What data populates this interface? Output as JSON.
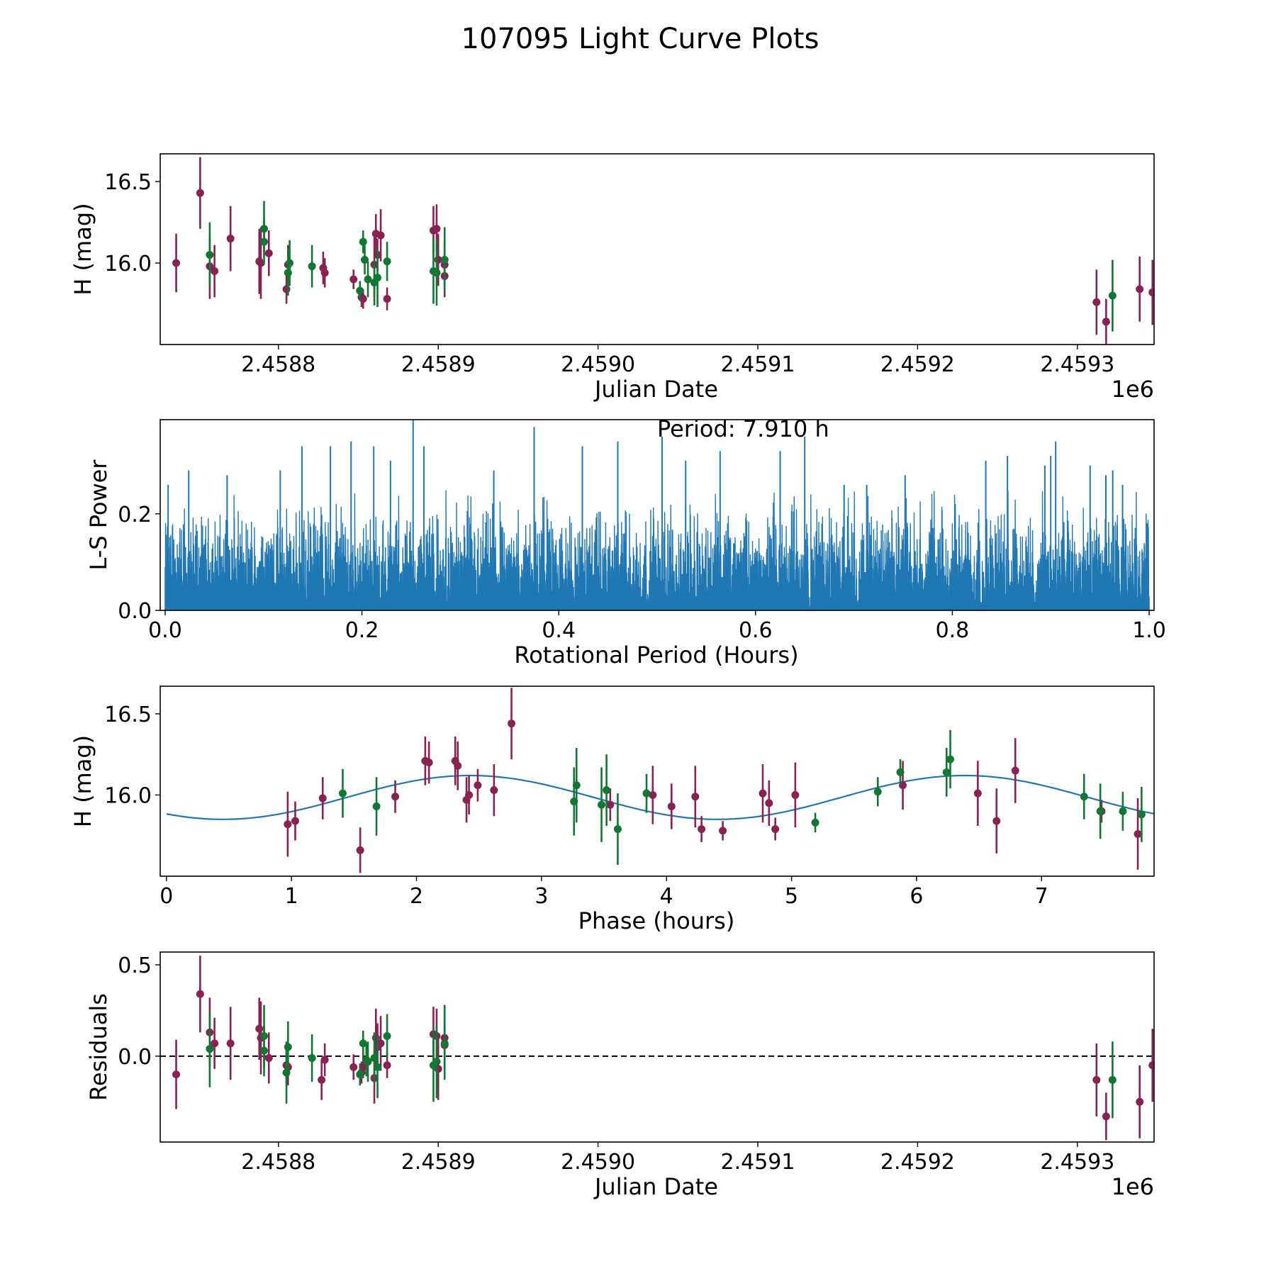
{
  "figure": {
    "title": "107095 Light Curve Plots"
  },
  "colors": {
    "series_a": "#882255",
    "series_b": "#117733",
    "periodogram": "#1f77b4",
    "fit": "#1f77b4",
    "zero_line": "#000000"
  },
  "chart_data": [
    {
      "id": "lightcurve",
      "type": "scatter",
      "title": "",
      "xlabel": "Julian Date",
      "ylabel": "H (mag)",
      "x_offset_label": "1e6",
      "x_units_note": "x values are JD - 2458800 (days)",
      "xlim": [
        -74,
        548
      ],
      "ylim": [
        15.5,
        16.67
      ],
      "xticks": [
        0,
        100,
        200,
        300,
        400,
        500
      ],
      "xtick_labels": [
        "2.4588",
        "2.4589",
        "2.4590",
        "2.4591",
        "2.4592",
        "2.4593"
      ],
      "yticks": [
        16.0,
        16.5
      ],
      "ytick_labels": [
        "16.0",
        "16.5"
      ],
      "series": [
        {
          "name": "filter A",
          "color_key": "series_a",
          "points": [
            [
              -64,
              16.0,
              0.18
            ],
            [
              -49,
              16.43,
              0.22
            ],
            [
              -43,
              15.98,
              0.2
            ],
            [
              -40,
              15.95,
              0.16
            ],
            [
              -30,
              16.15,
              0.2
            ],
            [
              -12,
              16.01,
              0.2
            ],
            [
              -11,
              16.0,
              0.22
            ],
            [
              -6,
              16.06,
              0.14
            ],
            [
              5,
              15.84,
              0.09
            ],
            [
              6,
              15.99,
              0.12
            ],
            [
              28,
              15.97,
              0.1
            ],
            [
              29,
              15.94,
              0.09
            ],
            [
              47,
              15.9,
              0.06
            ],
            [
              52,
              15.79,
              0.06
            ],
            [
              53,
              15.78,
              0.06
            ],
            [
              60,
              15.99,
              0.2
            ],
            [
              61,
              16.18,
              0.12
            ],
            [
              62,
              16.05,
              0.1
            ],
            [
              64,
              16.17,
              0.16
            ],
            [
              68,
              15.78,
              0.07
            ],
            [
              97,
              16.2,
              0.15
            ],
            [
              99,
              16.21,
              0.15
            ],
            [
              100,
              16.02,
              0.16
            ],
            [
              104,
              15.99,
              0.14
            ],
            [
              104,
              15.92,
              0.13
            ],
            [
              512,
              15.76,
              0.2
            ],
            [
              518,
              15.64,
              0.14
            ],
            [
              539,
              15.84,
              0.2
            ],
            [
              547,
              15.82,
              0.2
            ]
          ]
        },
        {
          "name": "filter B",
          "color_key": "series_b",
          "points": [
            [
              -43,
              16.05,
              0.2
            ],
            [
              -9,
              16.21,
              0.17
            ],
            [
              -9,
              16.13,
              0.14
            ],
            [
              6,
              15.94,
              0.14
            ],
            [
              7,
              16.0,
              0.14
            ],
            [
              21,
              15.98,
              0.13
            ],
            [
              51,
              15.83,
              0.06
            ],
            [
              53,
              16.13,
              0.07
            ],
            [
              54,
              16.02,
              0.09
            ],
            [
              56,
              15.9,
              0.11
            ],
            [
              60,
              15.88,
              0.14
            ],
            [
              62,
              15.91,
              0.18
            ],
            [
              68,
              16.01,
              0.12
            ],
            [
              97,
              15.95,
              0.2
            ],
            [
              99,
              15.94,
              0.2
            ],
            [
              104,
              16.02,
              0.2
            ],
            [
              522,
              15.8,
              0.22
            ]
          ]
        }
      ]
    },
    {
      "id": "periodogram",
      "type": "line",
      "title": "",
      "annotation": "Period: 7.910 h",
      "xlabel": "Rotational Period (Hours)",
      "ylabel": "L-S Power",
      "xlim": [
        -0.005,
        1.005
      ],
      "ylim": [
        0.0,
        0.395
      ],
      "xticks": [
        0.0,
        0.2,
        0.4,
        0.6,
        0.8,
        1.0
      ],
      "xtick_labels": [
        "0.0",
        "0.2",
        "0.4",
        "0.6",
        "0.8",
        "1.0"
      ],
      "yticks": [
        0.0,
        0.2
      ],
      "ytick_labels": [
        "0.0",
        "0.2"
      ],
      "noise_floor": 0.0,
      "typical_envelope": [
        0.1,
        0.2
      ],
      "notable_peaks": [
        [
          0.003,
          0.26
        ],
        [
          0.024,
          0.29
        ],
        [
          0.063,
          0.28
        ],
        [
          0.117,
          0.29
        ],
        [
          0.139,
          0.34
        ],
        [
          0.168,
          0.34
        ],
        [
          0.189,
          0.35
        ],
        [
          0.212,
          0.34
        ],
        [
          0.229,
          0.31
        ],
        [
          0.252,
          0.395
        ],
        [
          0.263,
          0.34
        ],
        [
          0.334,
          0.29
        ],
        [
          0.375,
          0.38
        ],
        [
          0.424,
          0.34
        ],
        [
          0.46,
          0.35
        ],
        [
          0.505,
          0.36
        ],
        [
          0.529,
          0.31
        ],
        [
          0.564,
          0.33
        ],
        [
          0.625,
          0.33
        ],
        [
          0.65,
          0.36
        ],
        [
          0.69,
          0.26
        ],
        [
          0.713,
          0.26
        ],
        [
          0.752,
          0.28
        ],
        [
          0.834,
          0.31
        ],
        [
          0.856,
          0.32
        ],
        [
          0.894,
          0.3
        ],
        [
          0.9,
          0.32
        ],
        [
          0.905,
          0.35
        ],
        [
          0.94,
          0.3
        ],
        [
          0.956,
          0.28
        ],
        [
          0.963,
          0.29
        ],
        [
          0.973,
          0.26
        ],
        [
          0.998,
          0.18
        ]
      ]
    },
    {
      "id": "phased",
      "type": "scatter",
      "title": "",
      "xlabel": "Phase (hours)",
      "ylabel": "H (mag)",
      "xlim": [
        -0.05,
        7.9
      ],
      "ylim": [
        15.5,
        16.67
      ],
      "xticks": [
        0,
        1,
        2,
        3,
        4,
        5,
        6,
        7
      ],
      "xtick_labels": [
        "0",
        "1",
        "2",
        "3",
        "4",
        "5",
        "6",
        "7"
      ],
      "yticks": [
        16.0,
        16.5
      ],
      "ytick_labels": [
        "16.0",
        "16.5"
      ],
      "fit": {
        "type": "sinusoid",
        "mean": 15.985,
        "amplitude": 0.135,
        "period_hours": 3.955,
        "max_phase_hours": 2.43,
        "x_range": [
          0.0,
          7.91
        ]
      },
      "series": [
        {
          "name": "filter A",
          "color_key": "series_a",
          "points": [
            [
              0.97,
              15.82,
              0.2
            ],
            [
              1.03,
              15.84,
              0.12
            ],
            [
              1.25,
              15.98,
              0.13
            ],
            [
              1.55,
              15.66,
              0.14
            ],
            [
              1.83,
              15.99,
              0.1
            ],
            [
              2.07,
              16.21,
              0.15
            ],
            [
              2.1,
              16.2,
              0.13
            ],
            [
              2.31,
              16.21,
              0.15
            ],
            [
              2.33,
              16.18,
              0.15
            ],
            [
              2.4,
              15.97,
              0.14
            ],
            [
              2.42,
              16.0,
              0.12
            ],
            [
              2.49,
              16.06,
              0.1
            ],
            [
              2.62,
              16.03,
              0.16
            ],
            [
              2.76,
              16.44,
              0.22
            ],
            [
              3.55,
              15.94,
              0.1
            ],
            [
              3.89,
              16.0,
              0.18
            ],
            [
              4.04,
              15.93,
              0.14
            ],
            [
              4.23,
              15.99,
              0.19
            ],
            [
              4.28,
              15.79,
              0.08
            ],
            [
              4.45,
              15.78,
              0.06
            ],
            [
              4.77,
              16.01,
              0.18
            ],
            [
              4.82,
              15.95,
              0.14
            ],
            [
              4.87,
              15.79,
              0.07
            ],
            [
              5.03,
              16.0,
              0.2
            ],
            [
              5.89,
              16.06,
              0.15
            ],
            [
              6.49,
              16.01,
              0.2
            ],
            [
              6.64,
              15.84,
              0.2
            ],
            [
              6.79,
              16.15,
              0.2
            ],
            [
              7.48,
              15.9,
              0.07
            ],
            [
              7.77,
              15.76,
              0.22
            ]
          ]
        },
        {
          "name": "filter B",
          "color_key": "series_b",
          "points": [
            [
              1.41,
              16.01,
              0.15
            ],
            [
              1.68,
              15.93,
              0.18
            ],
            [
              3.26,
              15.96,
              0.21
            ],
            [
              3.28,
              16.06,
              0.23
            ],
            [
              3.48,
              15.94,
              0.23
            ],
            [
              3.52,
              16.03,
              0.22
            ],
            [
              3.61,
              15.79,
              0.22
            ],
            [
              3.84,
              16.01,
              0.12
            ],
            [
              5.19,
              15.83,
              0.06
            ],
            [
              5.69,
              16.02,
              0.09
            ],
            [
              5.87,
              16.14,
              0.08
            ],
            [
              6.24,
              16.14,
              0.15
            ],
            [
              6.27,
              16.22,
              0.18
            ],
            [
              7.34,
              15.99,
              0.14
            ],
            [
              7.47,
              15.9,
              0.17
            ],
            [
              7.65,
              15.9,
              0.12
            ],
            [
              7.8,
              15.88,
              0.17
            ]
          ]
        }
      ]
    },
    {
      "id": "residuals",
      "type": "scatter",
      "title": "",
      "xlabel": "Julian Date",
      "ylabel": "Residuals",
      "x_offset_label": "1e6",
      "x_units_note": "x values are JD - 2458800 (days)",
      "xlim": [
        -74,
        548
      ],
      "ylim": [
        -0.47,
        0.57
      ],
      "xticks": [
        0,
        100,
        200,
        300,
        400,
        500
      ],
      "xtick_labels": [
        "2.4588",
        "2.4589",
        "2.4590",
        "2.4591",
        "2.4592",
        "2.4593"
      ],
      "yticks": [
        0.0,
        0.5
      ],
      "ytick_labels": [
        "0.0",
        "0.5"
      ],
      "reference_line": 0.0,
      "series": [
        {
          "name": "filter A",
          "color_key": "series_a",
          "points": [
            [
              -64,
              -0.1,
              0.19
            ],
            [
              -49,
              0.34,
              0.21
            ],
            [
              -43,
              0.13,
              0.19
            ],
            [
              -40,
              0.07,
              0.14
            ],
            [
              -30,
              0.07,
              0.2
            ],
            [
              -12,
              0.15,
              0.17
            ],
            [
              -11,
              0.1,
              0.2
            ],
            [
              -6,
              -0.01,
              0.14
            ],
            [
              5,
              -0.05,
              0.1
            ],
            [
              6,
              -0.06,
              0.1
            ],
            [
              27,
              -0.13,
              0.11
            ],
            [
              29,
              -0.02,
              0.09
            ],
            [
              47,
              -0.06,
              0.07
            ],
            [
              52,
              -0.09,
              0.06
            ],
            [
              53,
              -0.06,
              0.06
            ],
            [
              60,
              -0.12,
              0.14
            ],
            [
              61,
              0.1,
              0.16
            ],
            [
              62,
              0.05,
              0.13
            ],
            [
              64,
              0.07,
              0.15
            ],
            [
              68,
              -0.05,
              0.07
            ],
            [
              97,
              0.12,
              0.15
            ],
            [
              99,
              0.11,
              0.15
            ],
            [
              100,
              -0.07,
              0.17
            ],
            [
              104,
              0.1,
              0.18
            ],
            [
              104,
              0.06,
              0.14
            ],
            [
              512,
              -0.13,
              0.2
            ],
            [
              518,
              -0.33,
              0.13
            ],
            [
              539,
              -0.25,
              0.2
            ],
            [
              547,
              -0.05,
              0.2
            ]
          ]
        },
        {
          "name": "filter B",
          "color_key": "series_b",
          "points": [
            [
              -43,
              0.04,
              0.21
            ],
            [
              -9,
              0.11,
              0.17
            ],
            [
              -9,
              0.03,
              0.14
            ],
            [
              5,
              -0.09,
              0.17
            ],
            [
              6,
              0.05,
              0.14
            ],
            [
              21,
              -0.01,
              0.13
            ],
            [
              51,
              -0.1,
              0.06
            ],
            [
              53,
              0.07,
              0.07
            ],
            [
              55,
              -0.02,
              0.09
            ],
            [
              56,
              -0.03,
              0.11
            ],
            [
              60,
              -0.01,
              0.14
            ],
            [
              62,
              -0.06,
              0.17
            ],
            [
              68,
              0.11,
              0.12
            ],
            [
              97,
              -0.05,
              0.2
            ],
            [
              99,
              -0.03,
              0.2
            ],
            [
              104,
              0.07,
              0.2
            ],
            [
              522,
              -0.13,
              0.21
            ]
          ]
        }
      ]
    }
  ]
}
